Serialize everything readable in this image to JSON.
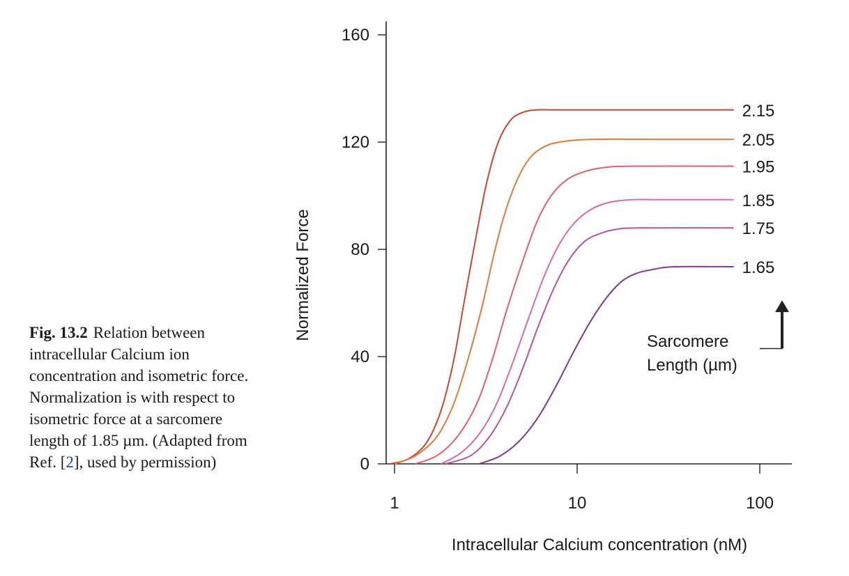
{
  "caption": {
    "label": "Fig. 13.2",
    "text_before_ref": "Relation between intracellular Calcium ion concentration and isometric force. Normalization is with respect to isometric force at a sarcomere length of 1.85 µm. (Adapted from Ref. [",
    "ref": "2",
    "text_after_ref": "], used by permission)"
  },
  "chart_data": {
    "type": "line",
    "title": "",
    "xlabel": "Intracellular Calcium concentration (nM)",
    "ylabel": "Normalized Force",
    "x_scale": "log",
    "xlim": [
      0.9,
      150
    ],
    "ylim": [
      0,
      165
    ],
    "x_ticks": [
      1,
      10,
      100
    ],
    "x_tick_labels": [
      "1",
      "10",
      "100"
    ],
    "y_ticks": [
      0,
      40,
      80,
      120,
      160
    ],
    "y_tick_labels": [
      "0",
      "40",
      "80",
      "120",
      "160"
    ],
    "grid": false,
    "legend": "none",
    "annotation": {
      "text_line1": "Sarcomere",
      "text_line2": "Length (µm)",
      "arrow": "up"
    },
    "series": [
      {
        "name": "2.15",
        "color": "#d0442f",
        "x": [
          0.95,
          1.2,
          1.5,
          1.8,
          2.1,
          2.4,
          2.8,
          3.2,
          3.7,
          4.3,
          5.0,
          6.0,
          8.0,
          20,
          72
        ],
        "y": [
          0,
          2,
          8,
          20,
          38,
          60,
          85,
          105,
          120,
          128,
          131,
          132,
          132,
          132,
          132
        ]
      },
      {
        "name": "2.05",
        "color": "#e07a3a",
        "x": [
          1.0,
          1.3,
          1.7,
          2.1,
          2.5,
          3.0,
          3.5,
          4.0,
          4.7,
          5.5,
          6.5,
          8.0,
          12,
          30,
          72
        ],
        "y": [
          0,
          3,
          10,
          22,
          38,
          58,
          78,
          93,
          106,
          114,
          118,
          120,
          121,
          121,
          121
        ]
      },
      {
        "name": "1.95",
        "color": "#e0606e",
        "x": [
          1.3,
          1.7,
          2.2,
          2.8,
          3.4,
          4.1,
          5.0,
          6.0,
          7.2,
          8.8,
          11,
          14,
          20,
          72
        ],
        "y": [
          0,
          3,
          10,
          22,
          38,
          57,
          75,
          90,
          100,
          106,
          109,
          110.5,
          111,
          111
        ]
      },
      {
        "name": "1.85",
        "color": "#d86aa0",
        "x": [
          1.8,
          2.3,
          2.9,
          3.6,
          4.4,
          5.4,
          6.6,
          8.0,
          9.7,
          12,
          15,
          20,
          30,
          72
        ],
        "y": [
          0,
          4,
          11,
          22,
          37,
          54,
          70,
          82,
          90,
          95,
          97.5,
          98.5,
          98.5,
          98.5
        ]
      },
      {
        "name": "1.75",
        "color": "#b0559e",
        "x": [
          1.9,
          2.6,
          3.3,
          4.1,
          5.0,
          6.1,
          7.4,
          9.0,
          11,
          13.5,
          16.5,
          22,
          72
        ],
        "y": [
          0,
          3,
          10,
          21,
          35,
          51,
          65,
          76,
          83,
          86,
          87.5,
          88,
          88
        ]
      },
      {
        "name": "1.65",
        "color": "#7d3a8e",
        "x": [
          2.9,
          3.8,
          4.9,
          6.2,
          7.8,
          9.6,
          11.8,
          14.5,
          17.5,
          21,
          26,
          34,
          72
        ],
        "y": [
          0,
          3,
          9,
          18,
          30,
          42,
          53,
          62,
          68,
          71,
          72.5,
          73.5,
          73.5
        ]
      }
    ]
  }
}
